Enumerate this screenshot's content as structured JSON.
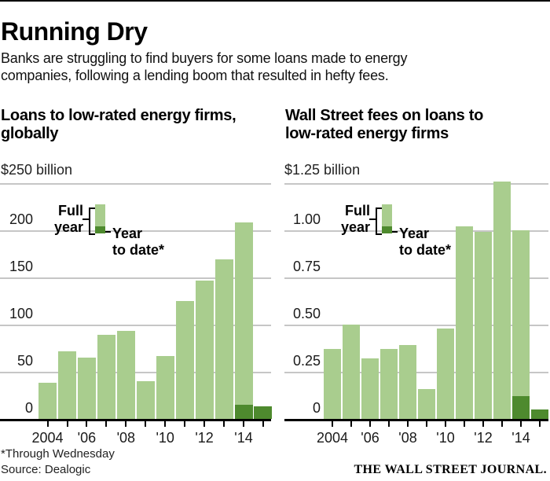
{
  "header": {
    "title": "Running Dry",
    "subtitle": "Banks are struggling to find buyers for some loans made to energy\ncompanies, following a lending boom that resulted in hefty fees."
  },
  "legend": {
    "full_year": "Full\nyear",
    "year_to_date": "Year\nto date*"
  },
  "colors": {
    "full_year_green": "#a9cd8e",
    "year_to_date_green": "#4e8a2e",
    "gridline_gray": "#c6c6c6",
    "axis_black": "#000000"
  },
  "footnotes": {
    "asterisk": "*Through Wednesday",
    "source": "Source: Dealogic"
  },
  "branding": "THE WALL STREET JOURNAL.",
  "chart_data": [
    {
      "type": "bar",
      "title": "Loans to low-rated energy firms,\nglobally",
      "unit_label": "$250 billion",
      "ylim": [
        0,
        250
      ],
      "gridline_values": [
        50,
        100,
        150,
        200,
        250
      ],
      "ytick_labels": [
        {
          "label": "200",
          "value": 200
        },
        {
          "label": "150",
          "value": 150
        },
        {
          "label": "100",
          "value": 100
        },
        {
          "label": "50",
          "value": 50
        },
        {
          "label": "0",
          "value": 0
        }
      ],
      "categories": [
        2004,
        2005,
        2006,
        2007,
        2008,
        2009,
        2010,
        2011,
        2012,
        2013,
        2014,
        2015
      ],
      "series": [
        {
          "name": "Full year",
          "values": [
            38,
            72,
            65,
            89,
            93,
            40,
            67,
            125,
            147,
            169,
            208,
            null
          ]
        },
        {
          "name": "Year to date",
          "values": [
            null,
            null,
            null,
            null,
            null,
            null,
            null,
            null,
            null,
            null,
            15,
            13
          ]
        }
      ],
      "xtick_labels": [
        "2004",
        "'06",
        "'08",
        "'10",
        "'12",
        "'14"
      ],
      "legend_position": "upper-left",
      "grid": true
    },
    {
      "type": "bar",
      "title": "Wall Street fees on loans to\nlow-rated energy firms",
      "unit_label": "$1.25 billion",
      "ylim": [
        0,
        1.25
      ],
      "gridline_values": [
        0.25,
        0.5,
        0.75,
        1.0,
        1.25
      ],
      "ytick_labels": [
        {
          "label": "1.00",
          "value": 1.0
        },
        {
          "label": "0.75",
          "value": 0.75
        },
        {
          "label": "0.50",
          "value": 0.5
        },
        {
          "label": "0.25",
          "value": 0.25
        },
        {
          "label": "0",
          "value": 0
        }
      ],
      "categories": [
        2004,
        2005,
        2006,
        2007,
        2008,
        2009,
        2010,
        2011,
        2012,
        2013,
        2014,
        2015
      ],
      "series": [
        {
          "name": "Full year",
          "values": [
            0.37,
            0.5,
            0.32,
            0.37,
            0.39,
            0.16,
            0.48,
            1.02,
            0.99,
            1.26,
            1.0,
            null
          ]
        },
        {
          "name": "Year to date",
          "values": [
            null,
            null,
            null,
            null,
            null,
            null,
            null,
            null,
            null,
            null,
            0.12,
            0.05
          ]
        }
      ],
      "xtick_labels": [
        "2004",
        "'06",
        "'08",
        "'10",
        "'12",
        "'14"
      ],
      "legend_position": "upper-left",
      "grid": true
    }
  ]
}
